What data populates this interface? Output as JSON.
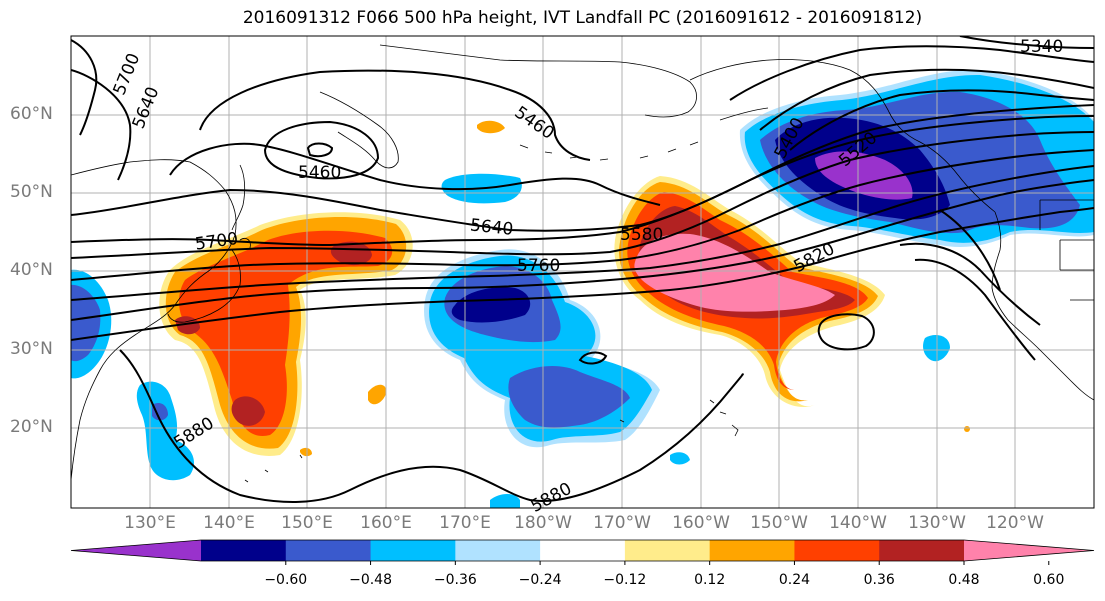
{
  "title": "2016091312 F066 500 hPa height, IVT Landfall PC (2016091612 - 2016091812)",
  "lat_labels": [
    "60°N",
    "50°N",
    "40°N",
    "30°N",
    "20°N"
  ],
  "lon_labels": [
    "130°E",
    "140°E",
    "150°E",
    "160°E",
    "170°E",
    "180°W",
    "170°W",
    "160°W",
    "150°W",
    "140°W",
    "130°W",
    "120°W"
  ],
  "contour_labels": {
    "c5700_nw": "5700",
    "c5640_nw": "5640",
    "c5460_low": "5460",
    "c5460_ne": "5460",
    "c5400": "5400",
    "c5520": "5520",
    "c5340": "5340",
    "c5700": "5700",
    "c5640": "5640",
    "c5580": "5580",
    "c5760": "5760",
    "c5820": "5820",
    "c5880": "5880",
    "c5880_s": "5880"
  },
  "colorbar": {
    "ticks": [
      "−0.60",
      "−0.48",
      "−0.36",
      "−0.24",
      "−0.12",
      "0.12",
      "0.24",
      "0.36",
      "0.48",
      "0.60"
    ],
    "colors": [
      "#9932cc",
      "#00008b",
      "#3a5acd",
      "#00bfff",
      "#b0e2ff",
      "#ffffff",
      "#ffec8b",
      "#ffa500",
      "#ff4000",
      "#b22222",
      "#ff82ab"
    ]
  }
}
